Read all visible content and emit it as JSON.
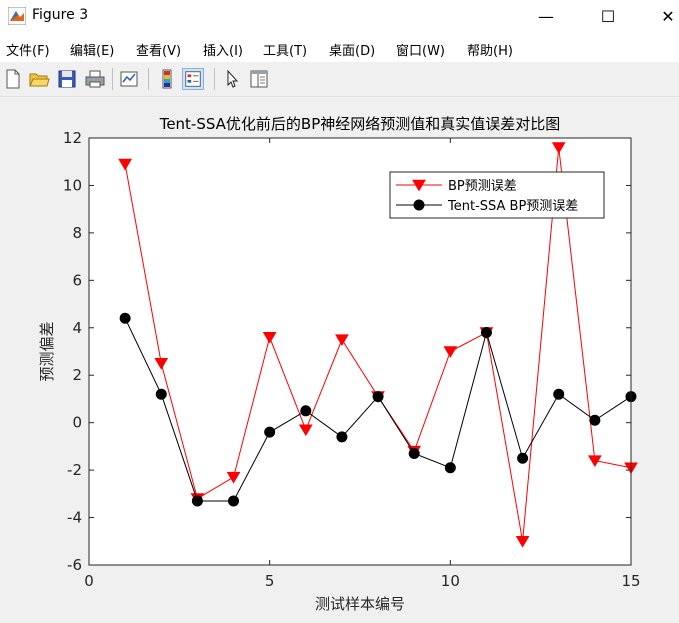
{
  "window": {
    "title": "Figure 3",
    "minimize": "—",
    "maximize": "☐",
    "close": "✕"
  },
  "menu": [
    "文件(F)",
    "编辑(E)",
    "查看(V)",
    "插入(I)",
    "工具(T)",
    "桌面(D)",
    "窗口(W)",
    "帮助(H)"
  ],
  "toolbar": {
    "icons": [
      "new-figure-icon",
      "open-file-icon",
      "save-icon",
      "print-icon",
      "link-plot-icon",
      "insert-colorbar-icon",
      "insert-legend-icon",
      "edit-plot-arrow-icon",
      "property-inspector-icon"
    ]
  },
  "colors": {
    "series1": "#ff0000",
    "series2": "#000000"
  },
  "chart_data": {
    "type": "line",
    "title": "Tent-SSA优化前后的BP神经网络预测值和真实值误差对比图",
    "xlabel": "测试样本编号",
    "ylabel": "预测偏差",
    "xlim": [
      0,
      15
    ],
    "ylim": [
      -6,
      12
    ],
    "xticks": [
      0,
      5,
      10,
      15
    ],
    "yticks": [
      -6,
      -4,
      -2,
      0,
      2,
      4,
      6,
      8,
      10,
      12
    ],
    "legend_position": "top-right",
    "grid": false,
    "x": [
      1,
      2,
      3,
      4,
      5,
      6,
      7,
      8,
      9,
      10,
      11,
      12,
      13,
      14,
      15
    ],
    "series": [
      {
        "name": "BP预测误差",
        "marker": "triangle-down",
        "values": [
          10.9,
          2.5,
          -3.2,
          -2.3,
          3.6,
          -0.3,
          3.5,
          1.1,
          -1.2,
          3.0,
          3.8,
          -5.0,
          11.6,
          -1.6,
          -1.9
        ]
      },
      {
        "name": "Tent-SSA BP预测误差",
        "marker": "circle",
        "values": [
          4.4,
          1.2,
          -3.3,
          -3.3,
          -0.4,
          0.5,
          -0.6,
          1.1,
          -1.3,
          -1.9,
          3.8,
          -1.5,
          1.2,
          0.1,
          1.1
        ]
      }
    ]
  }
}
